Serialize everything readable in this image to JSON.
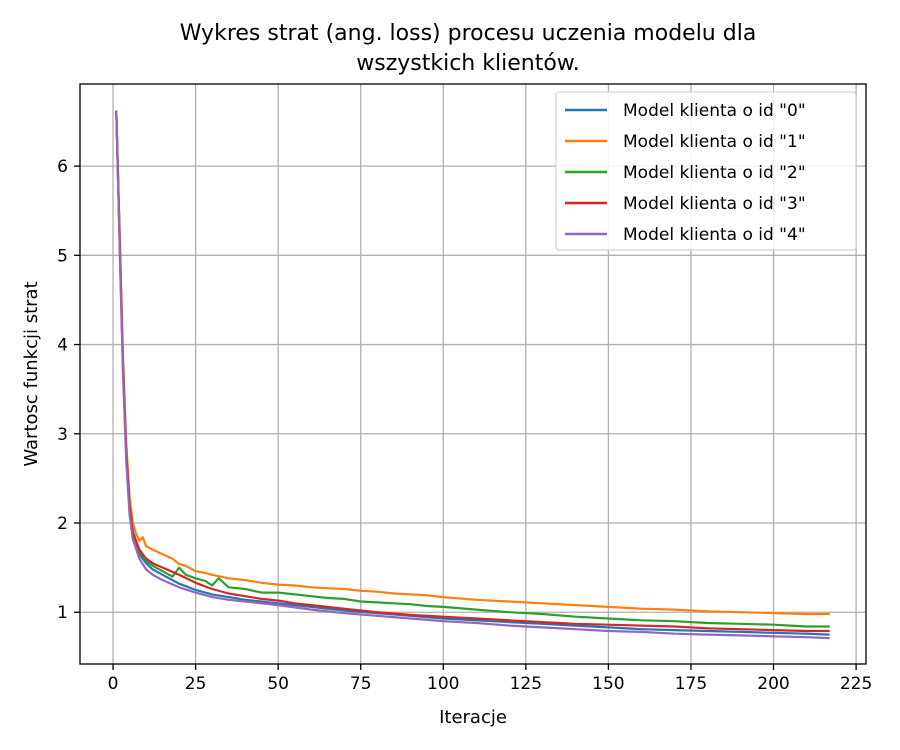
{
  "chart_data": {
    "type": "line",
    "title_lines": [
      "Wykres strat (ang. loss) procesu uczenia modelu dla",
      "wszystkich klientów."
    ],
    "xlabel": "Iteracje",
    "ylabel": "Wartosc funkcji strat",
    "xlim": [
      -10,
      228
    ],
    "ylim": [
      0.42,
      6.92
    ],
    "xticks": [
      0,
      25,
      50,
      75,
      100,
      125,
      150,
      175,
      200,
      225
    ],
    "yticks": [
      1,
      2,
      3,
      4,
      5,
      6
    ],
    "grid": true,
    "legend_position": "top-right",
    "series": [
      {
        "name": "Model klienta o id \"0\"",
        "color": "#1f77b4",
        "x": [
          1,
          2,
          3,
          4,
          5,
          6,
          8,
          10,
          12,
          15,
          20,
          25,
          30,
          35,
          40,
          50,
          60,
          70,
          80,
          90,
          100,
          110,
          120,
          130,
          140,
          150,
          160,
          170,
          180,
          190,
          200,
          210,
          217
        ],
        "y": [
          6.62,
          5.2,
          3.8,
          2.8,
          2.2,
          1.9,
          1.65,
          1.55,
          1.48,
          1.42,
          1.32,
          1.25,
          1.2,
          1.17,
          1.14,
          1.1,
          1.06,
          1.02,
          0.99,
          0.96,
          0.93,
          0.91,
          0.89,
          0.87,
          0.85,
          0.83,
          0.81,
          0.8,
          0.79,
          0.78,
          0.77,
          0.76,
          0.75
        ]
      },
      {
        "name": "Model klienta o id \"1\"",
        "color": "#ff7f0e",
        "x": [
          1,
          2,
          3,
          4,
          5,
          6,
          7,
          8,
          9,
          10,
          12,
          15,
          18,
          20,
          22,
          25,
          28,
          30,
          35,
          40,
          45,
          50,
          55,
          60,
          65,
          70,
          75,
          80,
          85,
          90,
          95,
          100,
          110,
          120,
          130,
          140,
          150,
          160,
          170,
          180,
          190,
          200,
          210,
          217
        ],
        "y": [
          6.62,
          5.3,
          3.9,
          2.9,
          2.3,
          2.0,
          1.88,
          1.8,
          1.84,
          1.74,
          1.7,
          1.65,
          1.6,
          1.54,
          1.52,
          1.46,
          1.44,
          1.42,
          1.38,
          1.36,
          1.33,
          1.31,
          1.3,
          1.28,
          1.27,
          1.26,
          1.24,
          1.23,
          1.21,
          1.2,
          1.19,
          1.17,
          1.14,
          1.12,
          1.1,
          1.08,
          1.06,
          1.04,
          1.03,
          1.01,
          1.0,
          0.99,
          0.98,
          0.98
        ]
      },
      {
        "name": "Model klienta o id \"2\"",
        "color": "#2ca02c",
        "x": [
          1,
          2,
          3,
          4,
          5,
          6,
          8,
          10,
          12,
          15,
          18,
          20,
          22,
          25,
          28,
          30,
          32,
          35,
          40,
          45,
          50,
          55,
          60,
          65,
          70,
          75,
          80,
          85,
          90,
          95,
          100,
          110,
          120,
          130,
          140,
          150,
          160,
          170,
          180,
          190,
          200,
          210,
          217
        ],
        "y": [
          6.62,
          5.2,
          3.8,
          2.8,
          2.2,
          1.9,
          1.68,
          1.58,
          1.52,
          1.46,
          1.4,
          1.5,
          1.42,
          1.38,
          1.35,
          1.3,
          1.38,
          1.28,
          1.26,
          1.22,
          1.22,
          1.2,
          1.18,
          1.16,
          1.15,
          1.12,
          1.11,
          1.1,
          1.09,
          1.07,
          1.06,
          1.03,
          1.0,
          0.98,
          0.95,
          0.93,
          0.91,
          0.9,
          0.88,
          0.87,
          0.86,
          0.84,
          0.84
        ]
      },
      {
        "name": "Model klienta o id \"3\"",
        "color": "#d62728",
        "x": [
          1,
          2,
          3,
          4,
          5,
          6,
          8,
          10,
          12,
          15,
          20,
          25,
          30,
          35,
          40,
          45,
          50,
          55,
          60,
          70,
          80,
          90,
          100,
          110,
          120,
          130,
          140,
          150,
          160,
          170,
          180,
          190,
          200,
          210,
          217
        ],
        "y": [
          6.62,
          5.2,
          3.8,
          2.8,
          2.2,
          1.9,
          1.7,
          1.6,
          1.55,
          1.5,
          1.42,
          1.33,
          1.26,
          1.21,
          1.18,
          1.15,
          1.13,
          1.1,
          1.08,
          1.04,
          1.0,
          0.97,
          0.95,
          0.93,
          0.91,
          0.89,
          0.87,
          0.86,
          0.85,
          0.84,
          0.82,
          0.81,
          0.8,
          0.79,
          0.79
        ]
      },
      {
        "name": "Model klienta o id \"4\"",
        "color": "#9467bd",
        "x": [
          1,
          2,
          3,
          4,
          5,
          6,
          8,
          10,
          12,
          15,
          20,
          25,
          30,
          35,
          40,
          50,
          60,
          70,
          80,
          90,
          100,
          110,
          120,
          130,
          140,
          150,
          160,
          170,
          180,
          190,
          200,
          210,
          217
        ],
        "y": [
          6.62,
          5.1,
          3.7,
          2.7,
          2.1,
          1.82,
          1.6,
          1.48,
          1.42,
          1.36,
          1.28,
          1.22,
          1.17,
          1.14,
          1.12,
          1.08,
          1.03,
          0.99,
          0.96,
          0.93,
          0.9,
          0.88,
          0.85,
          0.83,
          0.81,
          0.79,
          0.78,
          0.76,
          0.75,
          0.74,
          0.73,
          0.72,
          0.71
        ]
      }
    ]
  }
}
